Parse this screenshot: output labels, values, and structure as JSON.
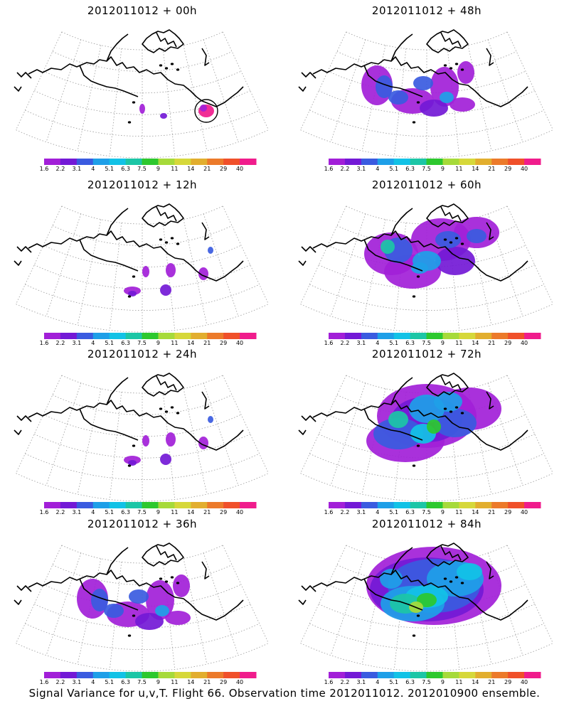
{
  "footer": "Signal Variance for u,v,T. Flight 66. Observation time 2012011012. 2012010900 ensemble.",
  "colorbar": {
    "labels": [
      "1.6",
      "2.2",
      "3.1",
      "4",
      "5.1",
      "6.3",
      "7.5",
      "9",
      "11",
      "14",
      "21",
      "29",
      "40"
    ],
    "colors": [
      "#a21fd8",
      "#7319d6",
      "#3a5be0",
      "#1e9fe8",
      "#12c2e6",
      "#1cc6a6",
      "#2dc82e",
      "#a6da3a",
      "#d6d83a",
      "#e2ae2e",
      "#ec7a2a",
      "#f0502a",
      "#f01c8c"
    ]
  },
  "panels": [
    {
      "title": "2012011012 + 00h",
      "intensity": 0
    },
    {
      "title": "2012011012 + 48h",
      "intensity": 2
    },
    {
      "title": "2012011012 + 12h",
      "intensity": 1
    },
    {
      "title": "2012011012 + 60h",
      "intensity": 3
    },
    {
      "title": "2012011012 + 24h",
      "intensity": 1
    },
    {
      "title": "2012011012 + 72h",
      "intensity": 4
    },
    {
      "title": "2012011012 + 36h",
      "intensity": 2
    },
    {
      "title": "2012011012 + 84h",
      "intensity": 5
    }
  ],
  "map_legend_icons": {
    "coastline": "coastline-line",
    "graticule": "graticule-dotted"
  }
}
